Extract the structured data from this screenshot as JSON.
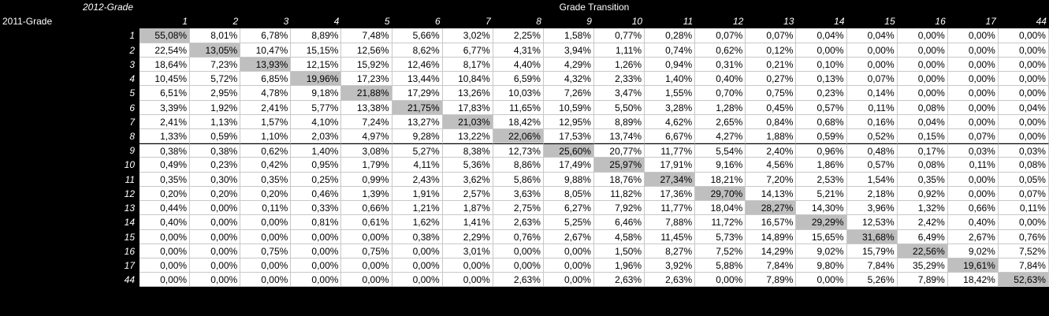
{
  "headers": {
    "corner_top": "2012-Grade",
    "corner_left": "2011-Grade",
    "title": "Grade Transition"
  },
  "columns": [
    "1",
    "2",
    "3",
    "4",
    "5",
    "6",
    "7",
    "8",
    "9",
    "10",
    "11",
    "12",
    "13",
    "14",
    "15",
    "16",
    "17",
    "44"
  ],
  "rows": [
    {
      "label": "1",
      "values": [
        "55,08%",
        "8,01%",
        "6,78%",
        "8,89%",
        "7,48%",
        "5,66%",
        "3,02%",
        "2,25%",
        "1,58%",
        "0,77%",
        "0,28%",
        "0,07%",
        "0,07%",
        "0,04%",
        "0,04%",
        "0,00%",
        "0,00%",
        "0,00%"
      ]
    },
    {
      "label": "2",
      "values": [
        "22,54%",
        "13,05%",
        "10,47%",
        "15,15%",
        "12,56%",
        "8,62%",
        "6,77%",
        "4,31%",
        "3,94%",
        "1,11%",
        "0,74%",
        "0,62%",
        "0,12%",
        "0,00%",
        "0,00%",
        "0,00%",
        "0,00%",
        "0,00%"
      ]
    },
    {
      "label": "3",
      "values": [
        "18,64%",
        "7,23%",
        "13,93%",
        "12,15%",
        "15,92%",
        "12,46%",
        "8,17%",
        "4,40%",
        "4,29%",
        "1,26%",
        "0,94%",
        "0,31%",
        "0,21%",
        "0,10%",
        "0,00%",
        "0,00%",
        "0,00%",
        "0,00%"
      ]
    },
    {
      "label": "4",
      "values": [
        "10,45%",
        "5,72%",
        "6,85%",
        "19,96%",
        "17,23%",
        "13,44%",
        "10,84%",
        "6,59%",
        "4,32%",
        "2,33%",
        "1,40%",
        "0,40%",
        "0,27%",
        "0,13%",
        "0,07%",
        "0,00%",
        "0,00%",
        "0,00%"
      ]
    },
    {
      "label": "5",
      "values": [
        "6,51%",
        "2,95%",
        "4,78%",
        "9,18%",
        "21,88%",
        "17,29%",
        "13,26%",
        "10,03%",
        "7,26%",
        "3,47%",
        "1,55%",
        "0,70%",
        "0,75%",
        "0,23%",
        "0,14%",
        "0,00%",
        "0,00%",
        "0,00%"
      ]
    },
    {
      "label": "6",
      "values": [
        "3,39%",
        "1,92%",
        "2,41%",
        "5,77%",
        "13,38%",
        "21,75%",
        "17,83%",
        "11,65%",
        "10,59%",
        "5,50%",
        "3,28%",
        "1,28%",
        "0,45%",
        "0,57%",
        "0,11%",
        "0,08%",
        "0,00%",
        "0,04%"
      ]
    },
    {
      "label": "7",
      "values": [
        "2,41%",
        "1,13%",
        "1,57%",
        "4,10%",
        "7,24%",
        "13,27%",
        "21,03%",
        "18,42%",
        "12,95%",
        "8,89%",
        "4,62%",
        "2,65%",
        "0,84%",
        "0,68%",
        "0,16%",
        "0,04%",
        "0,00%",
        "0,00%"
      ]
    },
    {
      "label": "8",
      "values": [
        "1,33%",
        "0,59%",
        "1,10%",
        "2,03%",
        "4,97%",
        "9,28%",
        "13,22%",
        "22,06%",
        "17,53%",
        "13,74%",
        "6,67%",
        "4,27%",
        "1,88%",
        "0,59%",
        "0,52%",
        "0,15%",
        "0,07%",
        "0,00%"
      ]
    },
    {
      "label": "9",
      "values": [
        "0,38%",
        "0,38%",
        "0,62%",
        "1,40%",
        "3,08%",
        "5,27%",
        "8,38%",
        "12,73%",
        "25,60%",
        "20,77%",
        "11,77%",
        "5,54%",
        "2,40%",
        "0,96%",
        "0,48%",
        "0,17%",
        "0,03%",
        "0,03%"
      ]
    },
    {
      "label": "10",
      "values": [
        "0,49%",
        "0,23%",
        "0,42%",
        "0,95%",
        "1,79%",
        "4,11%",
        "5,36%",
        "8,86%",
        "17,49%",
        "25,97%",
        "17,91%",
        "9,16%",
        "4,56%",
        "1,86%",
        "0,57%",
        "0,08%",
        "0,11%",
        "0,08%"
      ]
    },
    {
      "label": "11",
      "values": [
        "0,35%",
        "0,30%",
        "0,35%",
        "0,25%",
        "0,99%",
        "2,43%",
        "3,62%",
        "5,86%",
        "9,88%",
        "18,76%",
        "27,34%",
        "18,21%",
        "7,20%",
        "2,53%",
        "1,54%",
        "0,35%",
        "0,00%",
        "0,05%"
      ]
    },
    {
      "label": "12",
      "values": [
        "0,20%",
        "0,20%",
        "0,20%",
        "0,46%",
        "1,39%",
        "1,91%",
        "2,57%",
        "3,63%",
        "8,05%",
        "11,82%",
        "17,36%",
        "29,70%",
        "14,13%",
        "5,21%",
        "2,18%",
        "0,92%",
        "0,00%",
        "0,07%"
      ]
    },
    {
      "label": "13",
      "values": [
        "0,44%",
        "0,00%",
        "0,11%",
        "0,33%",
        "0,66%",
        "1,21%",
        "1,87%",
        "2,75%",
        "6,27%",
        "7,92%",
        "11,77%",
        "18,04%",
        "28,27%",
        "14,30%",
        "3,96%",
        "1,32%",
        "0,66%",
        "0,11%"
      ]
    },
    {
      "label": "14",
      "values": [
        "0,40%",
        "0,00%",
        "0,00%",
        "0,81%",
        "0,61%",
        "1,62%",
        "1,41%",
        "2,63%",
        "5,25%",
        "6,46%",
        "7,88%",
        "11,72%",
        "16,57%",
        "29,29%",
        "12,53%",
        "2,42%",
        "0,40%",
        "0,00%"
      ]
    },
    {
      "label": "15",
      "values": [
        "0,00%",
        "0,00%",
        "0,00%",
        "0,00%",
        "0,00%",
        "0,38%",
        "2,29%",
        "0,76%",
        "2,67%",
        "4,58%",
        "11,45%",
        "5,73%",
        "14,89%",
        "15,65%",
        "31,68%",
        "6,49%",
        "2,67%",
        "0,76%"
      ]
    },
    {
      "label": "16",
      "values": [
        "0,00%",
        "0,00%",
        "0,75%",
        "0,00%",
        "0,75%",
        "0,00%",
        "3,01%",
        "0,00%",
        "0,00%",
        "1,50%",
        "8,27%",
        "7,52%",
        "14,29%",
        "9,02%",
        "15,79%",
        "22,56%",
        "9,02%",
        "7,52%"
      ]
    },
    {
      "label": "17",
      "values": [
        "0,00%",
        "0,00%",
        "0,00%",
        "0,00%",
        "0,00%",
        "0,00%",
        "0,00%",
        "0,00%",
        "0,00%",
        "1,96%",
        "3,92%",
        "5,88%",
        "7,84%",
        "9,80%",
        "7,84%",
        "35,29%",
        "19,61%",
        "7,84%"
      ]
    },
    {
      "label": "44",
      "values": [
        "0,00%",
        "0,00%",
        "0,00%",
        "0,00%",
        "0,00%",
        "0,00%",
        "0,00%",
        "2,63%",
        "0,00%",
        "2,63%",
        "2,63%",
        "0,00%",
        "7,89%",
        "0,00%",
        "5,26%",
        "7,89%",
        "18,42%",
        "52,63%"
      ]
    }
  ],
  "colors": {
    "background": "#000000",
    "cell": "#ffffff",
    "diagonal_highlight": "#bfbfbf"
  }
}
